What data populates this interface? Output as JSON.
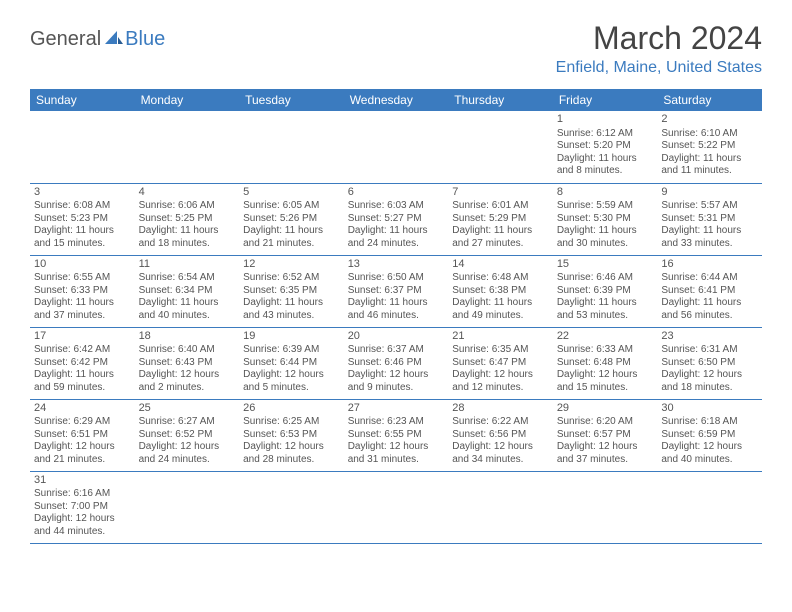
{
  "logo": {
    "general": "General",
    "blue": "Blue"
  },
  "title": "March 2024",
  "location": "Enfield, Maine, United States",
  "colors": {
    "header_bg": "#3b7bbf",
    "header_fg": "#ffffff",
    "accent": "#3b7bbf",
    "text": "#555555",
    "border": "#3b7bbf"
  },
  "day_headers": [
    "Sunday",
    "Monday",
    "Tuesday",
    "Wednesday",
    "Thursday",
    "Friday",
    "Saturday"
  ],
  "weeks": [
    [
      null,
      null,
      null,
      null,
      null,
      {
        "n": "1",
        "sunrise": "Sunrise: 6:12 AM",
        "sunset": "Sunset: 5:20 PM",
        "daylight": "Daylight: 11 hours and 8 minutes."
      },
      {
        "n": "2",
        "sunrise": "Sunrise: 6:10 AM",
        "sunset": "Sunset: 5:22 PM",
        "daylight": "Daylight: 11 hours and 11 minutes."
      }
    ],
    [
      {
        "n": "3",
        "sunrise": "Sunrise: 6:08 AM",
        "sunset": "Sunset: 5:23 PM",
        "daylight": "Daylight: 11 hours and 15 minutes."
      },
      {
        "n": "4",
        "sunrise": "Sunrise: 6:06 AM",
        "sunset": "Sunset: 5:25 PM",
        "daylight": "Daylight: 11 hours and 18 minutes."
      },
      {
        "n": "5",
        "sunrise": "Sunrise: 6:05 AM",
        "sunset": "Sunset: 5:26 PM",
        "daylight": "Daylight: 11 hours and 21 minutes."
      },
      {
        "n": "6",
        "sunrise": "Sunrise: 6:03 AM",
        "sunset": "Sunset: 5:27 PM",
        "daylight": "Daylight: 11 hours and 24 minutes."
      },
      {
        "n": "7",
        "sunrise": "Sunrise: 6:01 AM",
        "sunset": "Sunset: 5:29 PM",
        "daylight": "Daylight: 11 hours and 27 minutes."
      },
      {
        "n": "8",
        "sunrise": "Sunrise: 5:59 AM",
        "sunset": "Sunset: 5:30 PM",
        "daylight": "Daylight: 11 hours and 30 minutes."
      },
      {
        "n": "9",
        "sunrise": "Sunrise: 5:57 AM",
        "sunset": "Sunset: 5:31 PM",
        "daylight": "Daylight: 11 hours and 33 minutes."
      }
    ],
    [
      {
        "n": "10",
        "sunrise": "Sunrise: 6:55 AM",
        "sunset": "Sunset: 6:33 PM",
        "daylight": "Daylight: 11 hours and 37 minutes."
      },
      {
        "n": "11",
        "sunrise": "Sunrise: 6:54 AM",
        "sunset": "Sunset: 6:34 PM",
        "daylight": "Daylight: 11 hours and 40 minutes."
      },
      {
        "n": "12",
        "sunrise": "Sunrise: 6:52 AM",
        "sunset": "Sunset: 6:35 PM",
        "daylight": "Daylight: 11 hours and 43 minutes."
      },
      {
        "n": "13",
        "sunrise": "Sunrise: 6:50 AM",
        "sunset": "Sunset: 6:37 PM",
        "daylight": "Daylight: 11 hours and 46 minutes."
      },
      {
        "n": "14",
        "sunrise": "Sunrise: 6:48 AM",
        "sunset": "Sunset: 6:38 PM",
        "daylight": "Daylight: 11 hours and 49 minutes."
      },
      {
        "n": "15",
        "sunrise": "Sunrise: 6:46 AM",
        "sunset": "Sunset: 6:39 PM",
        "daylight": "Daylight: 11 hours and 53 minutes."
      },
      {
        "n": "16",
        "sunrise": "Sunrise: 6:44 AM",
        "sunset": "Sunset: 6:41 PM",
        "daylight": "Daylight: 11 hours and 56 minutes."
      }
    ],
    [
      {
        "n": "17",
        "sunrise": "Sunrise: 6:42 AM",
        "sunset": "Sunset: 6:42 PM",
        "daylight": "Daylight: 11 hours and 59 minutes."
      },
      {
        "n": "18",
        "sunrise": "Sunrise: 6:40 AM",
        "sunset": "Sunset: 6:43 PM",
        "daylight": "Daylight: 12 hours and 2 minutes."
      },
      {
        "n": "19",
        "sunrise": "Sunrise: 6:39 AM",
        "sunset": "Sunset: 6:44 PM",
        "daylight": "Daylight: 12 hours and 5 minutes."
      },
      {
        "n": "20",
        "sunrise": "Sunrise: 6:37 AM",
        "sunset": "Sunset: 6:46 PM",
        "daylight": "Daylight: 12 hours and 9 minutes."
      },
      {
        "n": "21",
        "sunrise": "Sunrise: 6:35 AM",
        "sunset": "Sunset: 6:47 PM",
        "daylight": "Daylight: 12 hours and 12 minutes."
      },
      {
        "n": "22",
        "sunrise": "Sunrise: 6:33 AM",
        "sunset": "Sunset: 6:48 PM",
        "daylight": "Daylight: 12 hours and 15 minutes."
      },
      {
        "n": "23",
        "sunrise": "Sunrise: 6:31 AM",
        "sunset": "Sunset: 6:50 PM",
        "daylight": "Daylight: 12 hours and 18 minutes."
      }
    ],
    [
      {
        "n": "24",
        "sunrise": "Sunrise: 6:29 AM",
        "sunset": "Sunset: 6:51 PM",
        "daylight": "Daylight: 12 hours and 21 minutes."
      },
      {
        "n": "25",
        "sunrise": "Sunrise: 6:27 AM",
        "sunset": "Sunset: 6:52 PM",
        "daylight": "Daylight: 12 hours and 24 minutes."
      },
      {
        "n": "26",
        "sunrise": "Sunrise: 6:25 AM",
        "sunset": "Sunset: 6:53 PM",
        "daylight": "Daylight: 12 hours and 28 minutes."
      },
      {
        "n": "27",
        "sunrise": "Sunrise: 6:23 AM",
        "sunset": "Sunset: 6:55 PM",
        "daylight": "Daylight: 12 hours and 31 minutes."
      },
      {
        "n": "28",
        "sunrise": "Sunrise: 6:22 AM",
        "sunset": "Sunset: 6:56 PM",
        "daylight": "Daylight: 12 hours and 34 minutes."
      },
      {
        "n": "29",
        "sunrise": "Sunrise: 6:20 AM",
        "sunset": "Sunset: 6:57 PM",
        "daylight": "Daylight: 12 hours and 37 minutes."
      },
      {
        "n": "30",
        "sunrise": "Sunrise: 6:18 AM",
        "sunset": "Sunset: 6:59 PM",
        "daylight": "Daylight: 12 hours and 40 minutes."
      }
    ],
    [
      {
        "n": "31",
        "sunrise": "Sunrise: 6:16 AM",
        "sunset": "Sunset: 7:00 PM",
        "daylight": "Daylight: 12 hours and 44 minutes."
      },
      null,
      null,
      null,
      null,
      null,
      null
    ]
  ]
}
